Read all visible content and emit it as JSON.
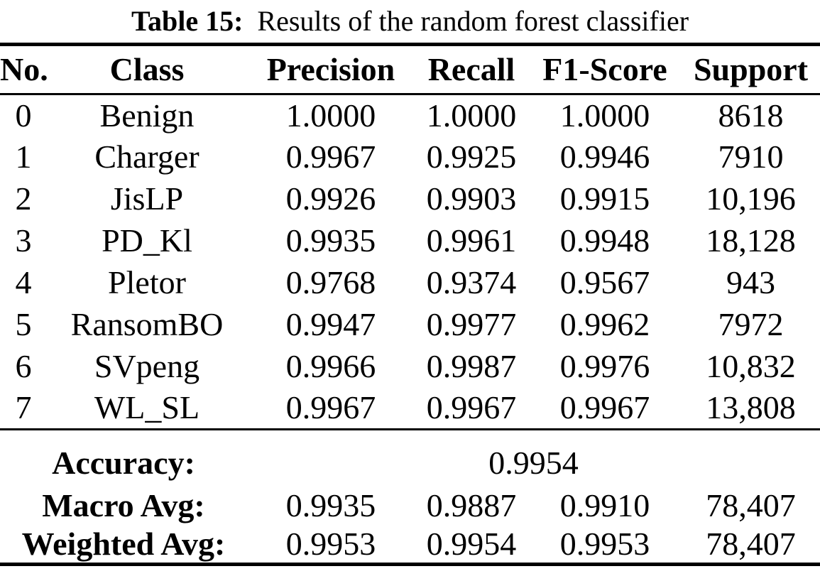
{
  "caption": {
    "label": "Table 15:",
    "text": "Results of the random forest classifier"
  },
  "table": {
    "columns": [
      "No.",
      "Class",
      "Precision",
      "Recall",
      "F1-Score",
      "Support"
    ],
    "rows": [
      [
        "0",
        "Benign",
        "1.0000",
        "1.0000",
        "1.0000",
        "8618"
      ],
      [
        "1",
        "Charger",
        "0.9967",
        "0.9925",
        "0.9946",
        "7910"
      ],
      [
        "2",
        "JisLP",
        "0.9926",
        "0.9903",
        "0.9915",
        "10,196"
      ],
      [
        "3",
        "PD_Kl",
        "0.9935",
        "0.9961",
        "0.9948",
        "18,128"
      ],
      [
        "4",
        "Pletor",
        "0.9768",
        "0.9374",
        "0.9567",
        "943"
      ],
      [
        "5",
        "RansomBO",
        "0.9947",
        "0.9977",
        "0.9962",
        "7972"
      ],
      [
        "6",
        "SVpeng",
        "0.9966",
        "0.9987",
        "0.9976",
        "10,832"
      ],
      [
        "7",
        "WL_SL",
        "0.9967",
        "0.9967",
        "0.9967",
        "13,808"
      ]
    ],
    "summary": {
      "accuracy": {
        "label": "Accuracy:",
        "value": "0.9954"
      },
      "macro_avg": {
        "label": "Macro Avg:",
        "precision": "0.9935",
        "recall": "0.9887",
        "f1": "0.9910",
        "support": "78,407"
      },
      "weighted_avg": {
        "label": "Weighted Avg:",
        "precision": "0.9953",
        "recall": "0.9954",
        "f1": "0.9953",
        "support": "78,407"
      }
    }
  },
  "colors": {
    "text": "#000000",
    "background": "#ffffff",
    "rule": "#000000"
  }
}
